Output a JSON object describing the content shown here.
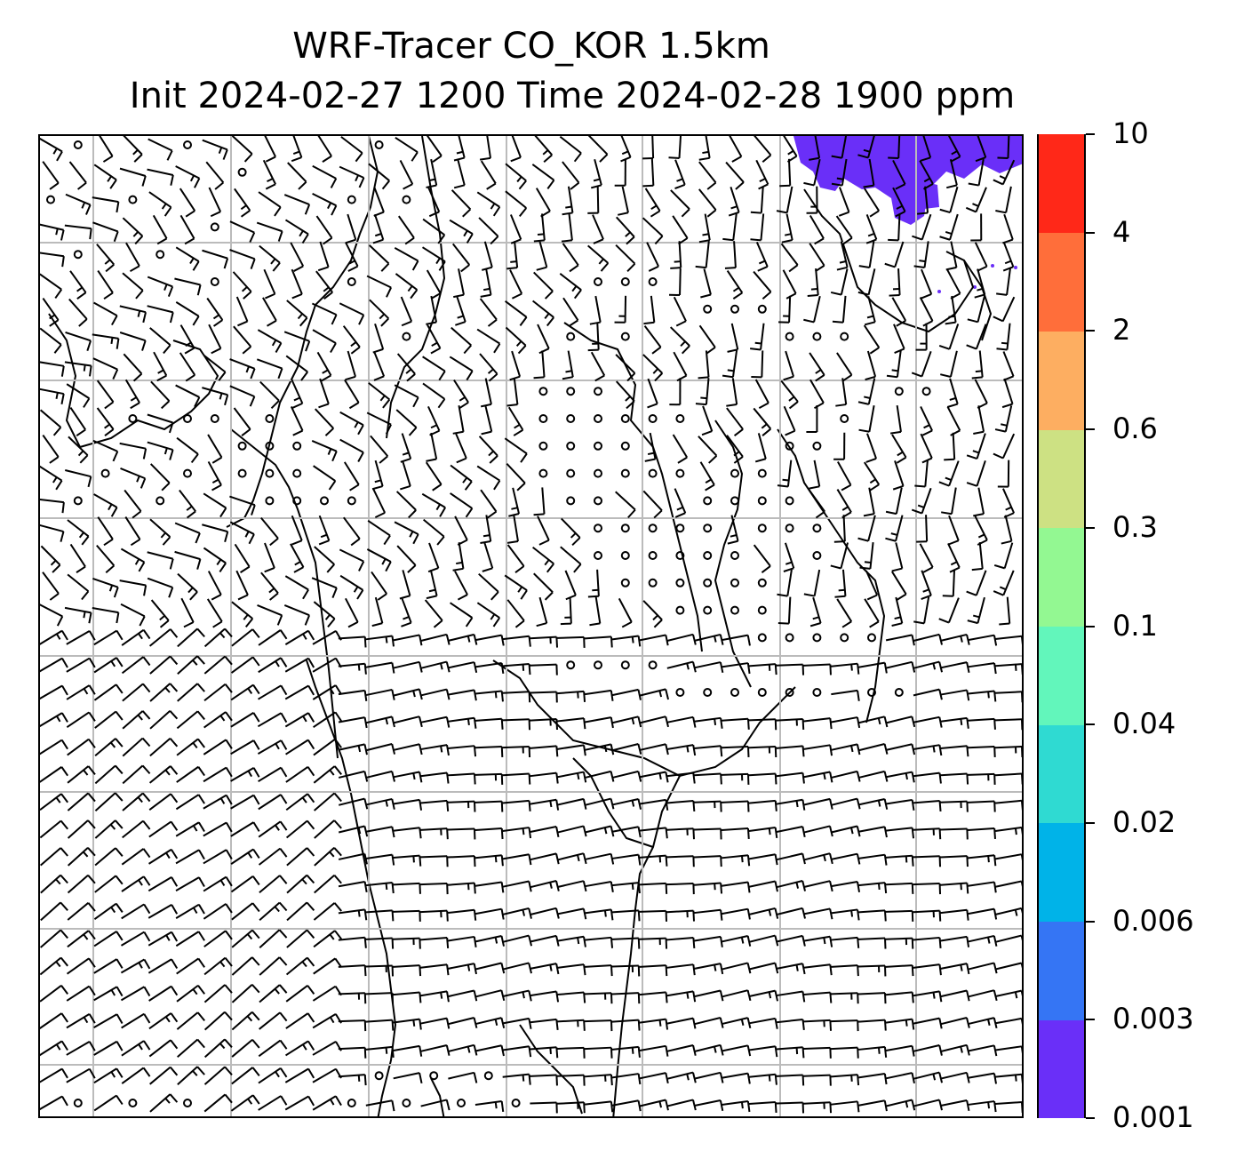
{
  "title": {
    "line1": "WRF-Tracer CO_KOR 1.5km",
    "line2": "Init 2024-02-27 1200 Time 2024-02-28 1900 ppm"
  },
  "colorbar": {
    "labels": [
      "0.001",
      "0.003",
      "0.006",
      "0.02",
      "0.04",
      "0.1",
      "0.3",
      "0.6",
      "2",
      "4",
      "10"
    ],
    "colors": [
      "#6a2ff8",
      "#3575f4",
      "#00b3e8",
      "#2fdad2",
      "#62f6bb",
      "#93f892",
      "#cde183",
      "#fdae61",
      "#ff6e3a",
      "#ff2818"
    ]
  },
  "map": {
    "tracer_color": "#6a2ff8",
    "barb_color": "#000000",
    "grid_color": "#bbbbbb"
  }
}
